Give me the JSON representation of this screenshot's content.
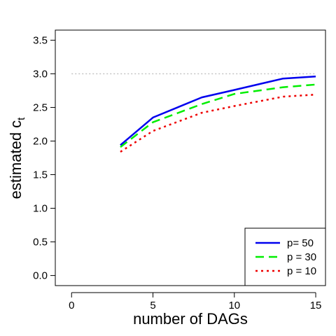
{
  "chart_data": {
    "type": "line",
    "xlabel": "number of DAGs",
    "ylabel_main": "estimated c",
    "ylabel_sub": "t",
    "xlim": [
      -1,
      15.6
    ],
    "ylim": [
      -0.15,
      3.65
    ],
    "x_ticks": [
      0,
      5,
      10,
      15
    ],
    "y_ticks": [
      0.0,
      0.5,
      1.0,
      1.5,
      2.0,
      2.5,
      3.0,
      3.5
    ],
    "x_tick_labels": [
      "0",
      "5",
      "10",
      "15"
    ],
    "y_tick_labels": [
      "0.0",
      "0.5",
      "1.0",
      "1.5",
      "2.0",
      "2.5",
      "3.0",
      "3.5"
    ],
    "reference_line": {
      "y": 3.0,
      "style": "dotted",
      "color": "#bfbfbf"
    },
    "legend_position": "bottom-right",
    "x": [
      3,
      5,
      8,
      10,
      13,
      15
    ],
    "series": [
      {
        "name": "p= 50",
        "values": [
          1.94,
          2.35,
          2.65,
          2.76,
          2.93,
          2.96
        ],
        "color": "#0000ee",
        "dash": "solid"
      },
      {
        "name": "p = 30",
        "values": [
          1.91,
          2.28,
          2.55,
          2.7,
          2.8,
          2.84
        ],
        "color": "#00ee00",
        "dash": "dashed"
      },
      {
        "name": "p = 10",
        "values": [
          1.84,
          2.15,
          2.42,
          2.52,
          2.66,
          2.69
        ],
        "color": "#ee0000",
        "dash": "dotted"
      }
    ]
  }
}
